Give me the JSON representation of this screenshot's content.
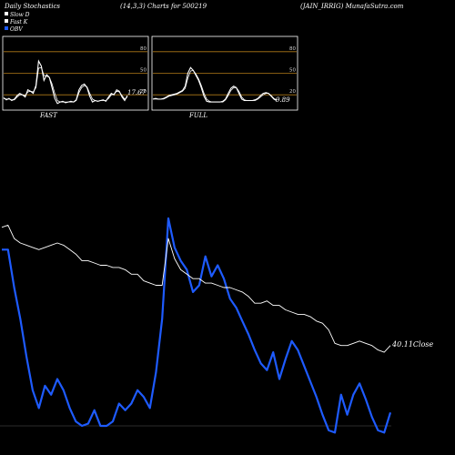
{
  "header": {
    "left": "Daily Stochastics",
    "middle": "(14,3,3) Charts for 500219",
    "right": "(JAIN_IRRIG) MunafaSutra.com"
  },
  "legend": [
    {
      "label": "Slow  D",
      "color": "#ffffff"
    },
    {
      "label": "Fast K",
      "color": "#ffffff"
    },
    {
      "label": "OBV",
      "color": "#1e5bff"
    }
  ],
  "colors": {
    "background": "#000000",
    "obv": "#1e5bff",
    "close": "#ffffff",
    "level_lines": "#b07a18"
  },
  "chart_data": [
    {
      "type": "line",
      "title": "FAST",
      "value_label": "17.67",
      "ylim": [
        0,
        100
      ],
      "levels": [
        20,
        50,
        80
      ],
      "tick_labels": [
        "20",
        "50",
        "80"
      ],
      "series": [
        {
          "values": [
            16,
            13,
            15,
            12,
            14,
            19,
            22,
            20,
            17,
            27,
            25,
            22,
            33,
            67,
            60,
            40,
            48,
            44,
            30,
            15,
            8,
            10,
            11,
            9,
            10,
            11,
            10,
            13,
            27,
            33,
            35,
            30,
            18,
            10,
            12,
            11,
            12,
            13,
            11,
            17,
            22,
            20,
            27,
            25,
            17,
            12,
            19
          ]
        },
        {
          "values": [
            15,
            14,
            14,
            13,
            13,
            17,
            20,
            20,
            19,
            24,
            25,
            24,
            30,
            57,
            58,
            47,
            46,
            44,
            35,
            22,
            12,
            10,
            10,
            10,
            10,
            10,
            10,
            12,
            23,
            30,
            33,
            31,
            22,
            14,
            12,
            11,
            12,
            12,
            12,
            15,
            20,
            21,
            25,
            24,
            19,
            14,
            17
          ]
        }
      ]
    },
    {
      "type": "line",
      "title": "FULL",
      "value_label": "9.89",
      "ylim": [
        0,
        100
      ],
      "levels": [
        20,
        50,
        80
      ],
      "tick_labels": [
        "20",
        "50",
        "80"
      ],
      "series": [
        {
          "values": [
            14,
            15,
            14,
            14,
            15,
            17,
            19,
            20,
            21,
            22,
            24,
            26,
            32,
            50,
            58,
            54,
            47,
            40,
            30,
            18,
            11,
            10,
            10,
            10,
            10,
            10,
            11,
            14,
            22,
            29,
            32,
            30,
            22,
            14,
            12,
            12,
            12,
            12,
            13,
            15,
            19,
            22,
            23,
            22,
            18,
            14,
            12
          ]
        },
        {
          "values": [
            14,
            14,
            14,
            14,
            14,
            16,
            18,
            19,
            20,
            21,
            23,
            25,
            29,
            43,
            53,
            54,
            49,
            42,
            33,
            22,
            14,
            11,
            10,
            10,
            10,
            10,
            10,
            13,
            19,
            26,
            30,
            30,
            25,
            17,
            13,
            12,
            12,
            12,
            12,
            14,
            17,
            20,
            22,
            22,
            19,
            15,
            13
          ]
        }
      ]
    },
    {
      "type": "line",
      "close_label": "40.11Close",
      "series": [
        {
          "name": "OBV",
          "values": [
            0.79,
            0.79,
            0.62,
            0.48,
            0.31,
            0.16,
            0.08,
            0.18,
            0.14,
            0.21,
            0.16,
            0.08,
            0.02,
            0.0,
            0.01,
            0.07,
            0.0,
            0.0,
            0.02,
            0.1,
            0.07,
            0.1,
            0.16,
            0.13,
            0.08,
            0.24,
            0.48,
            0.93,
            0.8,
            0.74,
            0.7,
            0.6,
            0.63,
            0.76,
            0.67,
            0.72,
            0.66,
            0.57,
            0.53,
            0.47,
            0.41,
            0.34,
            0.28,
            0.25,
            0.33,
            0.21,
            0.3,
            0.38,
            0.34,
            0.27,
            0.2,
            0.13,
            0.05,
            -0.02,
            -0.03,
            0.14,
            0.05,
            0.14,
            0.19,
            0.12,
            0.04,
            -0.02,
            -0.03,
            0.06
          ]
        },
        {
          "name": "Close",
          "values": [
            0.89,
            0.9,
            0.84,
            0.82,
            0.81,
            0.8,
            0.79,
            0.8,
            0.81,
            0.82,
            0.81,
            0.79,
            0.77,
            0.74,
            0.74,
            0.73,
            0.72,
            0.72,
            0.71,
            0.71,
            0.7,
            0.68,
            0.68,
            0.65,
            0.64,
            0.63,
            0.63,
            0.84,
            0.75,
            0.7,
            0.68,
            0.66,
            0.66,
            0.64,
            0.64,
            0.63,
            0.62,
            0.62,
            0.61,
            0.6,
            0.58,
            0.55,
            0.55,
            0.56,
            0.54,
            0.54,
            0.52,
            0.51,
            0.5,
            0.5,
            0.49,
            0.47,
            0.46,
            0.43,
            0.37,
            0.36,
            0.36,
            0.37,
            0.38,
            0.37,
            0.36,
            0.34,
            0.33,
            0.36
          ]
        }
      ]
    }
  ]
}
